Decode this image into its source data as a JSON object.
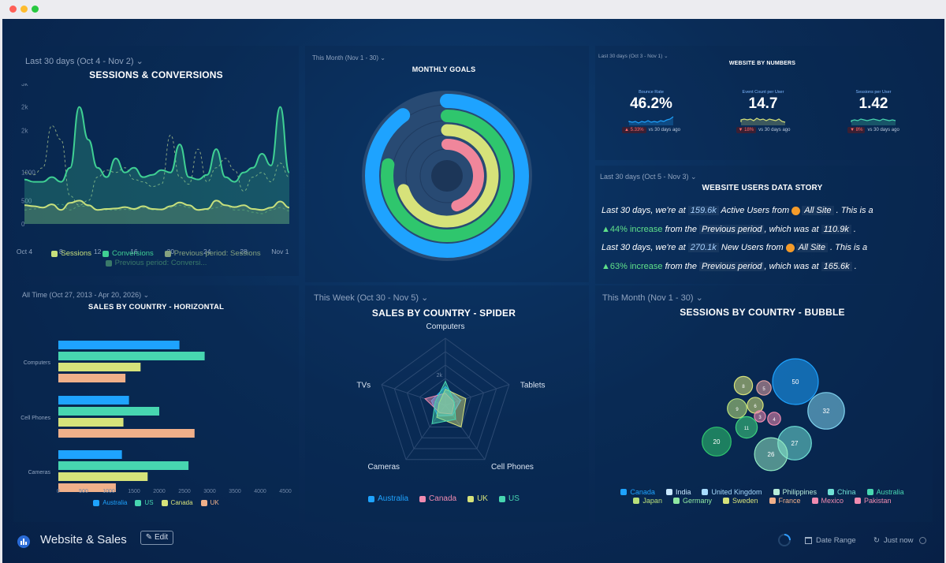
{
  "window": {
    "traffic_lights": [
      "#ff5f57",
      "#febc2e",
      "#28c840"
    ]
  },
  "colors": {
    "australia": "#1ea3ff",
    "us": "#47d6b0",
    "canada": "#d6e27a",
    "uk": "#f0b08a",
    "sessions_line": "#c7e07c",
    "conversions_line": "#3fcf93"
  },
  "sessions": {
    "range": "Last 30 days (Oct 4 - Nov 2) ⌄",
    "title": "SESSIONS & CONVERSIONS",
    "yticks": [
      "3k",
      "2k",
      "2k",
      "1000",
      "500",
      "0"
    ],
    "xticks": [
      "Oct 4",
      "8",
      "12",
      "16",
      "20",
      "24",
      "28",
      "Nov 1"
    ],
    "legend": [
      "Sessions",
      "Conversions",
      "Previous period: Sessions",
      "Previous period: Conversi..."
    ]
  },
  "goals": {
    "range": "This Month (Nov 1 - 30) ⌄",
    "title": "MONTHLY GOALS"
  },
  "numbers": {
    "range": "Last 30 days (Oct 3 - Nov 1) ⌄",
    "title": "WEBSITE BY NUMBERS",
    "kpis": [
      {
        "label": "Bounce Rate",
        "value": "46.2%",
        "change": "▲ 5.33%",
        "note": "vs 30 days ago"
      },
      {
        "label": "Event Count per User",
        "value": "14.7",
        "change": "▼ 18%",
        "note": "vs 30 days ago"
      },
      {
        "label": "Sessions per User",
        "value": "1.42",
        "change": "▼ 8%",
        "note": "vs 30 days ago"
      }
    ]
  },
  "story": {
    "range": "Last 30 days (Oct 5 - Nov 3) ⌄",
    "title": "WEBSITE USERS DATA STORY",
    "l1a": "Last 30 days",
    "l1b": ", we're at",
    "l1c": "159.6k",
    "l1d": "Active Users from",
    "l1e": "All Site",
    "l1f": ". This is a",
    "l2a": "▲44% increase",
    "l2b": "from the",
    "l2c": "Previous period",
    "l2d": ", which was at",
    "l2e": "110.9k",
    "l2f": ".",
    "l3a": "Last 30 days",
    "l3b": ", we're at",
    "l3c": "270.1k",
    "l3d": "New Users from",
    "l3e": "All Site",
    "l3f": ". This is a",
    "l4a": "▲63% increase",
    "l4b": "from the",
    "l4c": "Previous period",
    "l4d": ", which was at",
    "l4e": "165.6k",
    "l4f": "."
  },
  "horizontal": {
    "range": "All Time (Oct 27, 2013 - Apr 20, 2026) ⌄",
    "title": "SALES BY COUNTRY - HORIZONTAL",
    "legend": [
      "Australia",
      "US",
      "Canada",
      "UK"
    ]
  },
  "spider": {
    "range": "This Week (Oct 30 - Nov 5) ⌄",
    "title": "SALES BY COUNTRY - SPIDER",
    "legend": [
      "Australia",
      "Canada",
      "UK",
      "US"
    ]
  },
  "bubble": {
    "range": "This Month (Nov 1 - 30) ⌄",
    "title": "SESSIONS BY COUNTRY - BUBBLE",
    "legend_row1": [
      "Canada",
      "India",
      "United Kingdom",
      "Philippines",
      "China",
      "Australia"
    ],
    "legend_row2": [
      "Japan",
      "Germany",
      "Sweden",
      "France",
      "Mexico",
      "Pakistan"
    ]
  },
  "footer": {
    "title": "Website & Sales",
    "edit": "✎ Edit",
    "date_range": "Date Range",
    "updated": "Just now"
  },
  "chart_data": [
    {
      "type": "line",
      "title": "SESSIONS & CONVERSIONS",
      "x": [
        "Oct 4",
        "5",
        "6",
        "7",
        "8",
        "9",
        "10",
        "11",
        "12",
        "13",
        "14",
        "15",
        "16",
        "17",
        "18",
        "19",
        "20",
        "21",
        "22",
        "23",
        "24",
        "25",
        "26",
        "27",
        "28",
        "29",
        "30",
        "31",
        "Nov 1",
        "Nov 2"
      ],
      "ylim": [
        0,
        3000
      ],
      "series": [
        {
          "name": "Conversions",
          "values": [
            950,
            900,
            900,
            1000,
            900,
            1200,
            2500,
            1800,
            1200,
            1000,
            1400,
            1100,
            1200,
            1000,
            1050,
            1150,
            1100,
            1700,
            1000,
            950,
            1050,
            1600,
            1000,
            900,
            1100,
            1200,
            1500,
            1250,
            2500,
            1100
          ]
        },
        {
          "name": "Sessions",
          "values": [
            400,
            380,
            350,
            420,
            300,
            450,
            500,
            400,
            300,
            320,
            330,
            360,
            320,
            380,
            320,
            310,
            380,
            460,
            400,
            300,
            320,
            500,
            400,
            360,
            400,
            320,
            300,
            350,
            480,
            350
          ]
        },
        {
          "name": "Previous period: Sessions",
          "values": [
            1100,
            1050,
            1200,
            2100,
            1800,
            600,
            400,
            500,
            1000,
            1150,
            1100,
            1200,
            950,
            900,
            800,
            850,
            1900,
            1000,
            850,
            1600,
            900,
            1200,
            1400,
            1150,
            700,
            1000,
            1100,
            900,
            1300,
            1000
          ]
        },
        {
          "name": "Previous period: Conversions",
          "values": [
            300,
            320,
            350,
            400,
            420,
            300,
            380,
            380,
            300,
            300,
            300,
            310,
            300,
            350,
            300,
            300,
            350,
            400,
            350,
            300,
            300,
            350,
            400,
            300,
            300,
            250,
            220,
            300,
            350,
            280
          ]
        }
      ]
    },
    {
      "type": "radial-bar",
      "title": "MONTHLY GOALS",
      "series": [
        {
          "progress": 0.9,
          "color": "#1ea3ff"
        },
        {
          "progress": 0.78,
          "color": "#2fc66d"
        },
        {
          "progress": 0.7,
          "color": "#d6e27a"
        },
        {
          "progress": 0.45,
          "color": "#f0869b"
        }
      ]
    },
    {
      "type": "bar",
      "title": "SALES BY COUNTRY - HORIZONTAL",
      "orientation": "horizontal",
      "categories": [
        "Computers",
        "Cell Phones",
        "Cameras"
      ],
      "xticks": [
        "0",
        "500",
        "1000",
        "1500",
        "2000",
        "2500",
        "3000",
        "3500",
        "4000",
        "4500"
      ],
      "xlim": [
        0,
        4500
      ],
      "series": [
        {
          "name": "Australia",
          "values": [
            2400,
            1400,
            1260
          ]
        },
        {
          "name": "US",
          "values": [
            2900,
            2000,
            2580
          ]
        },
        {
          "name": "Canada",
          "values": [
            1630,
            1290,
            1770
          ]
        },
        {
          "name": "UK",
          "values": [
            1330,
            2700,
            1140
          ]
        }
      ]
    },
    {
      "type": "radar",
      "title": "SALES BY COUNTRY - SPIDER",
      "categories": [
        "Computers",
        "Tablets",
        "Cell Phones",
        "Cameras",
        "TVs"
      ],
      "ytick": "2k",
      "rlim": [
        0,
        5000
      ],
      "series": [
        {
          "name": "Australia",
          "values": [
            1400,
            1200,
            900,
            1000,
            1100
          ]
        },
        {
          "name": "Canada",
          "values": [
            900,
            700,
            800,
            700,
            1600
          ]
        },
        {
          "name": "UK",
          "values": [
            1200,
            1600,
            2000,
            1100,
            500
          ]
        },
        {
          "name": "US",
          "values": [
            1800,
            700,
            1300,
            1700,
            800
          ]
        }
      ]
    },
    {
      "type": "bubble",
      "title": "SESSIONS BY COUNTRY - BUBBLE",
      "points": [
        {
          "value": 50,
          "color": "#1ea3ff"
        },
        {
          "value": 32,
          "color": "#7fd3ef"
        },
        {
          "value": 27,
          "color": "#6fe0d5"
        },
        {
          "value": 26,
          "color": "#8fe8c2"
        },
        {
          "value": 20,
          "color": "#2fc66d"
        },
        {
          "value": 11,
          "color": "#3fd47f"
        },
        {
          "value": 9,
          "color": "#b9e07a"
        },
        {
          "value": 8,
          "color": "#d6e27a"
        },
        {
          "value": 6,
          "color": "#d6e27a"
        },
        {
          "value": 5,
          "color": "#e2a0a0"
        },
        {
          "value": 4,
          "color": "#f08bb0"
        },
        {
          "value": 3,
          "color": "#f08bb0"
        }
      ]
    }
  ]
}
